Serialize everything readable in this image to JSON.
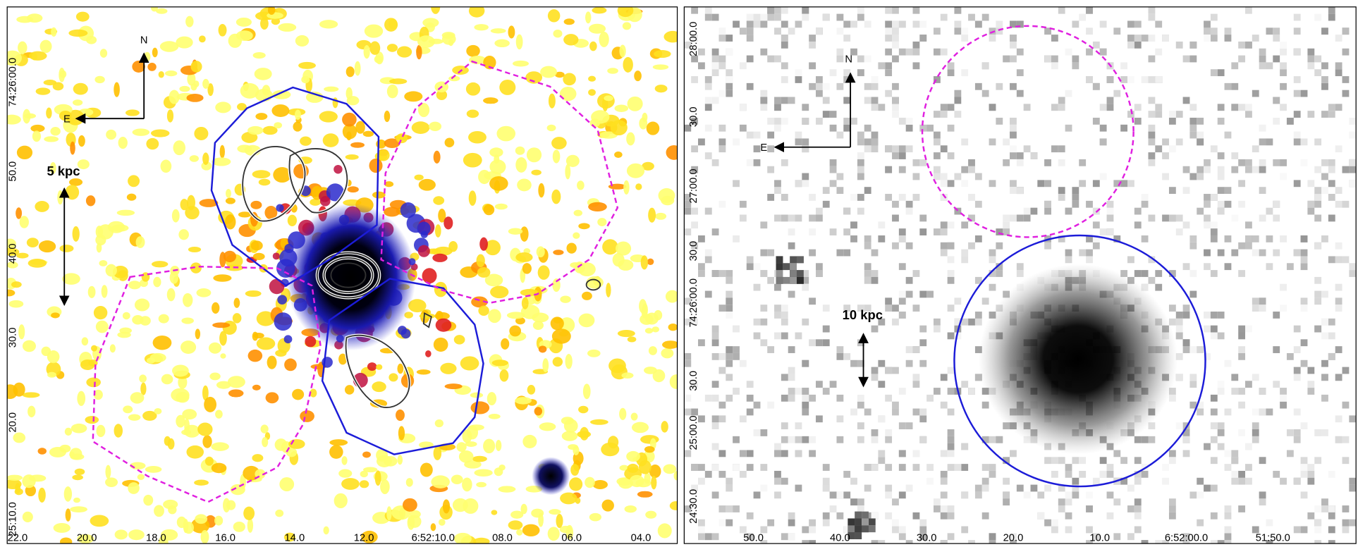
{
  "left_panel": {
    "compass": {
      "north": "N",
      "east": "E"
    },
    "scale_bar": "5 kpc",
    "y_labels": [
      "74:26:00.0",
      "50.0",
      "40.0",
      "30.0",
      "20.0",
      "25:10.0"
    ],
    "x_labels": [
      "22.0",
      "20.0",
      "18.0",
      "16.0",
      "14.0",
      "12.0",
      "6:52:10.0",
      "08.0",
      "06.0",
      "04.0"
    ]
  },
  "right_panel": {
    "compass": {
      "north": "N",
      "east": "E"
    },
    "scale_bar": "10 kpc",
    "y_labels": [
      "28:00.0",
      "30.0",
      "27:00.0",
      "30.0",
      "74:26:00.0",
      "30.0",
      "25:00.0",
      "24:30.0"
    ],
    "x_labels": [
      "50.0",
      "40.0",
      "30.0",
      "20.0",
      "10.0",
      "6:52:00.0",
      "51:50.0"
    ]
  }
}
